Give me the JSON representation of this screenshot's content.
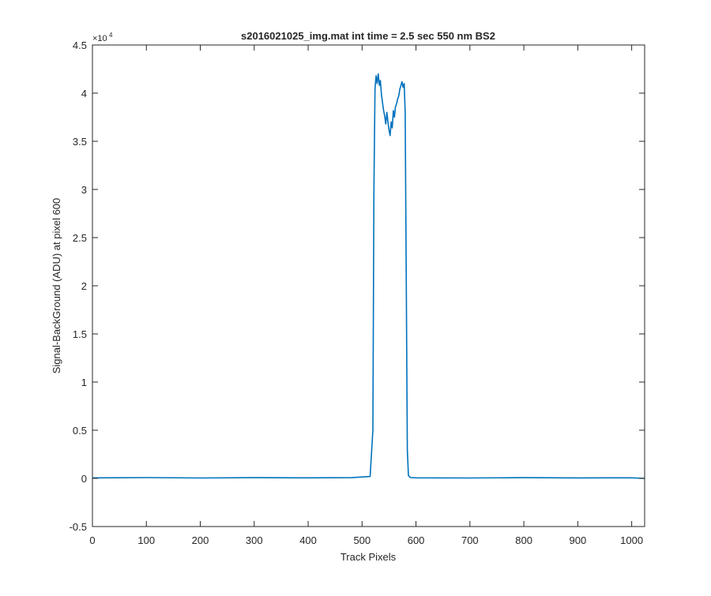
{
  "chart_data": {
    "type": "line",
    "title": "s2016021025_img.mat int time = 2.5 sec  550 nm BS2",
    "xlabel": "Track Pixels",
    "ylabel": "Signal-BackGround (ADU) at pixel 600",
    "xlim": [
      0,
      1024
    ],
    "ylim": [
      -5000,
      45000
    ],
    "x_ticks": [
      0,
      100,
      200,
      300,
      400,
      500,
      600,
      700,
      800,
      900,
      1000
    ],
    "x_tick_labels": [
      "0",
      "100",
      "200",
      "300",
      "400",
      "500",
      "600",
      "700",
      "800",
      "900",
      "1000"
    ],
    "y_ticks": [
      -5000,
      0,
      5000,
      10000,
      15000,
      20000,
      25000,
      30000,
      35000,
      40000,
      45000
    ],
    "y_tick_labels": [
      "-0.5",
      "0",
      "0.5",
      "1",
      "1.5",
      "2",
      "2.5",
      "3",
      "3.5",
      "4",
      "4.5"
    ],
    "y_exponent_label": "×10",
    "y_exponent_power": "4",
    "grid": false,
    "line_color": "#0072bd",
    "series": [
      {
        "x": [
          0,
          100,
          200,
          300,
          400,
          480,
          515,
          520,
          522,
          524,
          526,
          528,
          530,
          532,
          534,
          536,
          538,
          540,
          542,
          544,
          546,
          548,
          550,
          552,
          554,
          556,
          558,
          560,
          562,
          564,
          566,
          568,
          570,
          572,
          574,
          576,
          578,
          580,
          582,
          584,
          586,
          590,
          600,
          700,
          800,
          900,
          1000,
          1024
        ],
        "y": [
          50,
          80,
          40,
          70,
          60,
          70,
          200,
          5000,
          30000,
          40500,
          41800,
          41000,
          42000,
          40800,
          41300,
          39800,
          39000,
          38200,
          37600,
          36800,
          38000,
          37000,
          36200,
          35600,
          37000,
          36400,
          38200,
          37500,
          38600,
          38900,
          39400,
          39700,
          40400,
          40800,
          41200,
          40600,
          41000,
          38000,
          20000,
          3000,
          300,
          80,
          60,
          40,
          70,
          50,
          60,
          0
        ]
      }
    ]
  }
}
